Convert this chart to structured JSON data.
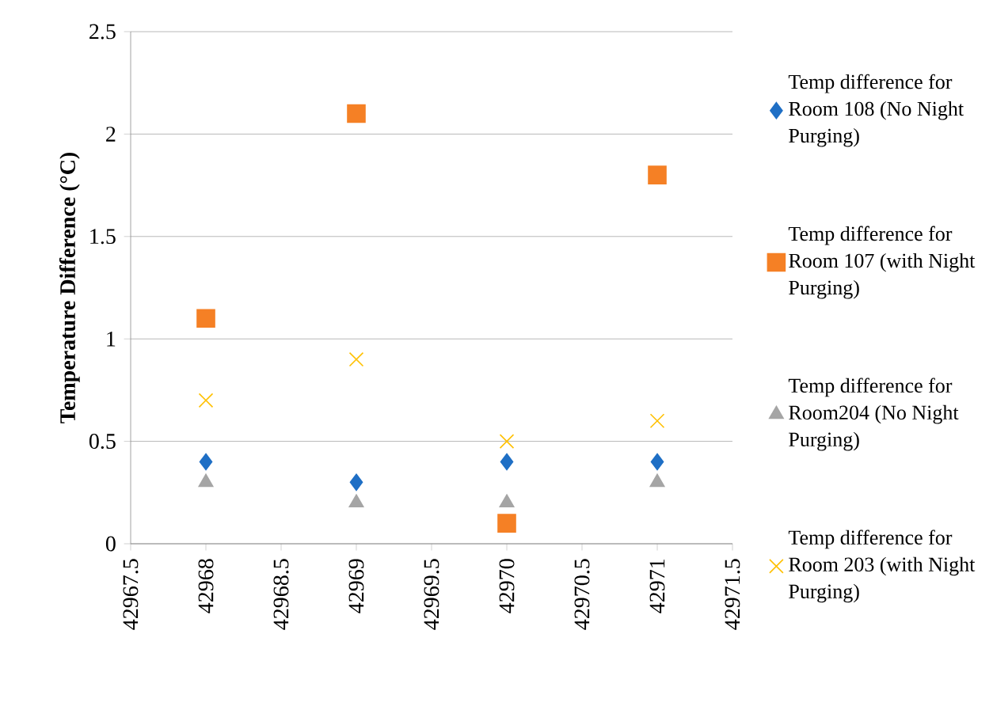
{
  "chart_data": {
    "type": "scatter",
    "ylabel": "Temperature Difference (°C)",
    "x": [
      42968,
      42969,
      42970,
      42971
    ],
    "xlim": [
      42967.5,
      42971.5
    ],
    "xticks": [
      42967.5,
      42968,
      42968.5,
      42969,
      42969.5,
      42970,
      42970.5,
      42971,
      42971.5
    ],
    "ylim": [
      0,
      2.5
    ],
    "yticks": [
      0,
      0.5,
      1,
      1.5,
      2,
      2.5
    ],
    "grid": "y",
    "legend": "right",
    "series": [
      {
        "name": "Temp difference for Room 108 (No Night Purging)",
        "color": "#1f6fc5",
        "marker": "diamond",
        "values": [
          0.4,
          0.3,
          0.4,
          0.4
        ]
      },
      {
        "name": "Temp difference for Room 107 (with Night Purging)",
        "color": "#f58025",
        "marker": "square",
        "values": [
          1.1,
          2.1,
          0.1,
          1.8
        ]
      },
      {
        "name": "Temp difference for Room204 (No Night Purging)",
        "color": "#a5a5a5",
        "marker": "triangle",
        "values": [
          0.3,
          0.2,
          0.2,
          0.3
        ]
      },
      {
        "name": "Temp difference for Room 203 (with Night Purging)",
        "color": "#ffc000",
        "marker": "cross",
        "values": [
          0.7,
          0.9,
          0.5,
          0.6
        ]
      }
    ]
  }
}
